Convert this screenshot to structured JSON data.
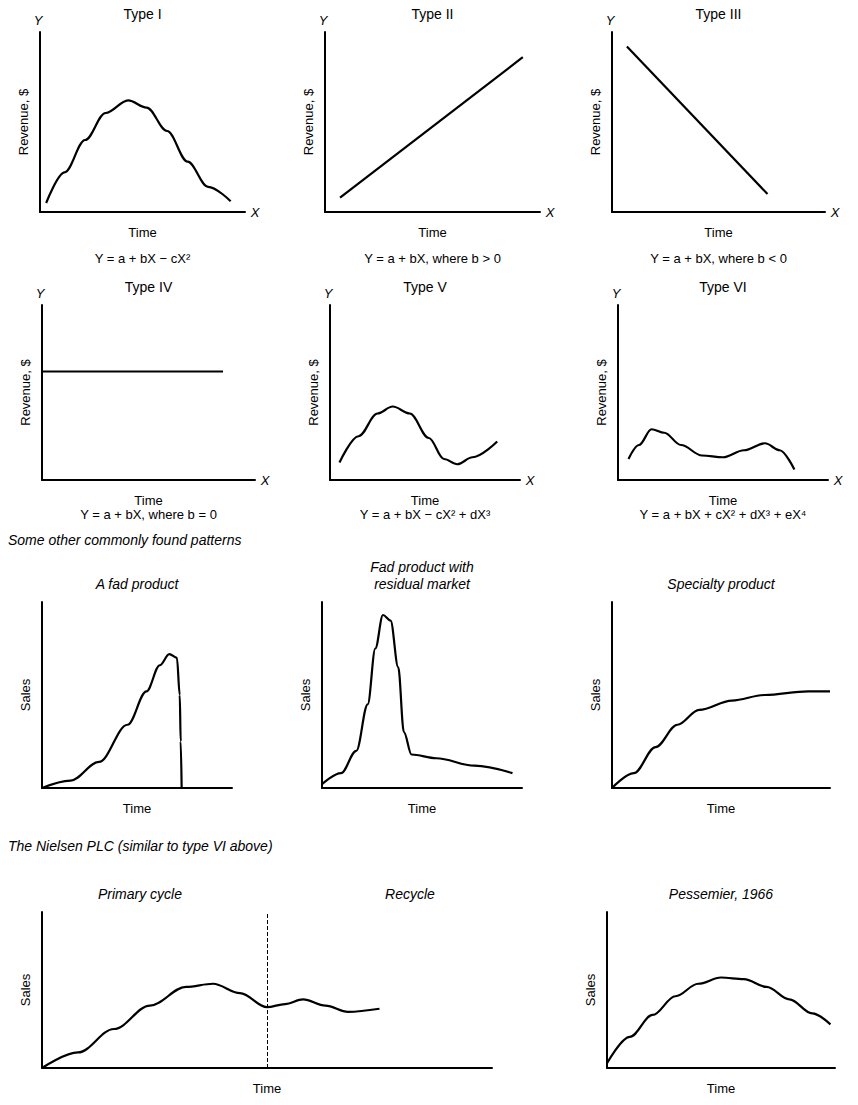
{
  "chart_data": [
    {
      "type": "line",
      "title": "Type I",
      "x_label": "Time",
      "y_label": "Revenue, $",
      "axis_letters": {
        "x": "X",
        "y": "Y"
      },
      "formula": "Y = a + bX − cX²",
      "color": "#000000",
      "tick_labels": false,
      "xlim": [
        0,
        100
      ],
      "ylim": [
        0,
        100
      ],
      "x": [
        3,
        12,
        22,
        32,
        43,
        52,
        62,
        72,
        82,
        93
      ],
      "values": [
        5,
        22,
        40,
        55,
        62,
        58,
        45,
        28,
        14,
        6
      ]
    },
    {
      "type": "line",
      "title": "Type II",
      "x_label": "Time",
      "y_label": "Revenue, $",
      "axis_letters": {
        "x": "X",
        "y": "Y"
      },
      "formula": "Y = a + bX, where b > 0",
      "color": "#000000",
      "tick_labels": false,
      "xlim": [
        0,
        100
      ],
      "ylim": [
        0,
        100
      ],
      "x": [
        7,
        92
      ],
      "values": [
        8,
        86
      ]
    },
    {
      "type": "line",
      "title": "Type III",
      "x_label": "Time",
      "y_label": "Revenue, $",
      "axis_letters": {
        "x": "X",
        "y": "Y"
      },
      "formula": "Y = a + bX, where b < 0",
      "color": "#000000",
      "tick_labels": false,
      "xlim": [
        0,
        100
      ],
      "ylim": [
        0,
        100
      ],
      "x": [
        7,
        73
      ],
      "values": [
        92,
        10
      ]
    },
    {
      "type": "line",
      "title": "Type IV",
      "x_label": "Time",
      "y_label": "Revenue, $",
      "axis_letters": {
        "x": "X",
        "y": "Y"
      },
      "formula": "Y = a + bX, where b = 0",
      "color": "#000000",
      "tick_labels": false,
      "xlim": [
        0,
        100
      ],
      "ylim": [
        0,
        100
      ],
      "x": [
        0,
        85
      ],
      "values": [
        62,
        62
      ]
    },
    {
      "type": "line",
      "title": "Type V",
      "x_label": "Time",
      "y_label": "Revenue, $",
      "axis_letters": {
        "x": "X",
        "y": "Y"
      },
      "formula": "Y = a + bX − cX² + dX³",
      "color": "#000000",
      "tick_labels": false,
      "xlim": [
        0,
        100
      ],
      "ylim": [
        0,
        100
      ],
      "x": [
        5,
        15,
        25,
        33,
        42,
        52,
        60,
        67,
        75,
        88
      ],
      "values": [
        10,
        25,
        38,
        42,
        38,
        24,
        12,
        9,
        13,
        22
      ]
    },
    {
      "type": "line",
      "title": "Type VI",
      "x_label": "Time",
      "y_label": "Revenue, $",
      "axis_letters": {
        "x": "X",
        "y": "Y"
      },
      "formula": "Y = a + bX + cX² + dX³ + eX⁴",
      "color": "#000000",
      "tick_labels": false,
      "xlim": [
        0,
        100
      ],
      "ylim": [
        0,
        100
      ],
      "x": [
        5,
        10,
        16,
        22,
        30,
        40,
        50,
        60,
        70,
        77,
        84
      ],
      "values": [
        12,
        20,
        29,
        27,
        20,
        14,
        13,
        17,
        21,
        17,
        6
      ]
    },
    {
      "type": "line",
      "title": "A fad product",
      "x_label": "Time",
      "y_label": "Sales",
      "color": "#000000",
      "tick_labels": false,
      "xlim": [
        0,
        100
      ],
      "ylim": [
        0,
        100
      ],
      "x": [
        0,
        15,
        30,
        45,
        55,
        62,
        67,
        71,
        72.5,
        73,
        73.5
      ],
      "values": [
        0,
        4,
        14,
        34,
        52,
        66,
        72,
        70,
        50,
        25,
        0
      ]
    },
    {
      "type": "line",
      "title": "Fad product with residual market",
      "x_label": "Time",
      "y_label": "Sales",
      "color": "#000000",
      "tick_labels": false,
      "xlim": [
        0,
        105
      ],
      "ylim": [
        0,
        100
      ],
      "x": [
        0,
        10,
        18,
        24,
        28,
        32,
        36,
        40,
        43,
        47,
        60,
        80,
        100
      ],
      "values": [
        2,
        8,
        20,
        45,
        75,
        93,
        90,
        65,
        30,
        18,
        16,
        12,
        8
      ]
    },
    {
      "type": "line",
      "title": "Specialty product",
      "x_label": "Time",
      "y_label": "Sales",
      "color": "#000000",
      "tick_labels": false,
      "xlim": [
        0,
        100
      ],
      "ylim": [
        0,
        100
      ],
      "x": [
        0,
        10,
        20,
        30,
        40,
        55,
        70,
        90,
        100
      ],
      "values": [
        0,
        8,
        22,
        34,
        42,
        47,
        50,
        52,
        52
      ]
    },
    {
      "type": "line",
      "segment_titles": [
        "Primary cycle",
        "Recycle"
      ],
      "divider_x": 50,
      "x_label": "Time",
      "y_label": "Sales",
      "color": "#000000",
      "tick_labels": false,
      "xlim": [
        0,
        100
      ],
      "ylim": [
        0,
        100
      ],
      "x": [
        0,
        8,
        16,
        24,
        32,
        38,
        44,
        50,
        54,
        58,
        63,
        68,
        75
      ],
      "values": [
        0,
        10,
        25,
        40,
        52,
        54,
        48,
        39,
        41,
        44,
        40,
        36,
        38
      ]
    },
    {
      "type": "line",
      "title": "Pessemier, 1966",
      "x_label": "Time",
      "y_label": "Sales",
      "color": "#000000",
      "tick_labels": false,
      "xlim": [
        0,
        100
      ],
      "ylim": [
        0,
        100
      ],
      "x": [
        0,
        10,
        20,
        30,
        40,
        50,
        60,
        70,
        80,
        90,
        98
      ],
      "values": [
        3,
        20,
        34,
        46,
        54,
        58,
        57,
        52,
        44,
        35,
        28
      ]
    }
  ],
  "headings": [
    "Some other commonly found patterns",
    "The Nielsen PLC (similar to type VI above)"
  ]
}
